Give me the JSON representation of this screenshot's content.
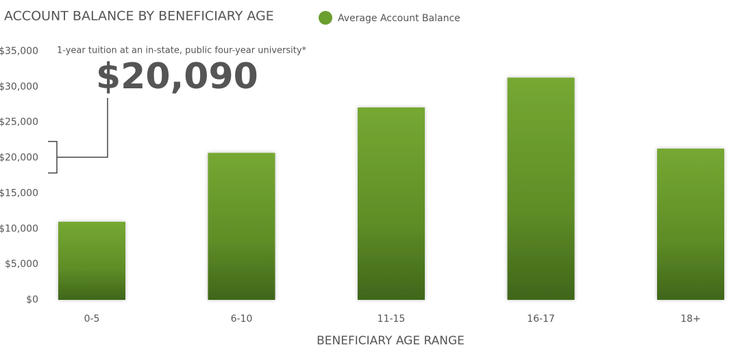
{
  "chart_data": {
    "type": "bar",
    "title": "ACCOUNT BALANCE BY BENEFICIARY AGE",
    "x_label": "BENEFICIARY AGE RANGE",
    "categories": [
      "0-5",
      "6-10",
      "11-15",
      "16-17",
      "18+"
    ],
    "series": [
      {
        "name": "Average Account Balance",
        "color": "#6a9e2e",
        "values": [
          11000,
          20700,
          27100,
          31300,
          21300
        ]
      }
    ],
    "ylim": [
      0,
      35000
    ],
    "yticks": [
      {
        "value": 0,
        "label": "$0"
      },
      {
        "value": 5000,
        "label": "$5,000"
      },
      {
        "value": 10000,
        "label": "$10,000"
      },
      {
        "value": 15000,
        "label": "$15,000"
      },
      {
        "value": 20000,
        "label": "$20,000"
      },
      {
        "value": 25000,
        "label": "$25,000"
      },
      {
        "value": 30000,
        "label": "$30,000"
      },
      {
        "value": 35000,
        "label": "$35,000"
      }
    ],
    "grid": false,
    "annotation": {
      "text": "1-year tuition at an in-state, public four-year university*",
      "value": 20090,
      "value_label": "$20,090"
    }
  }
}
